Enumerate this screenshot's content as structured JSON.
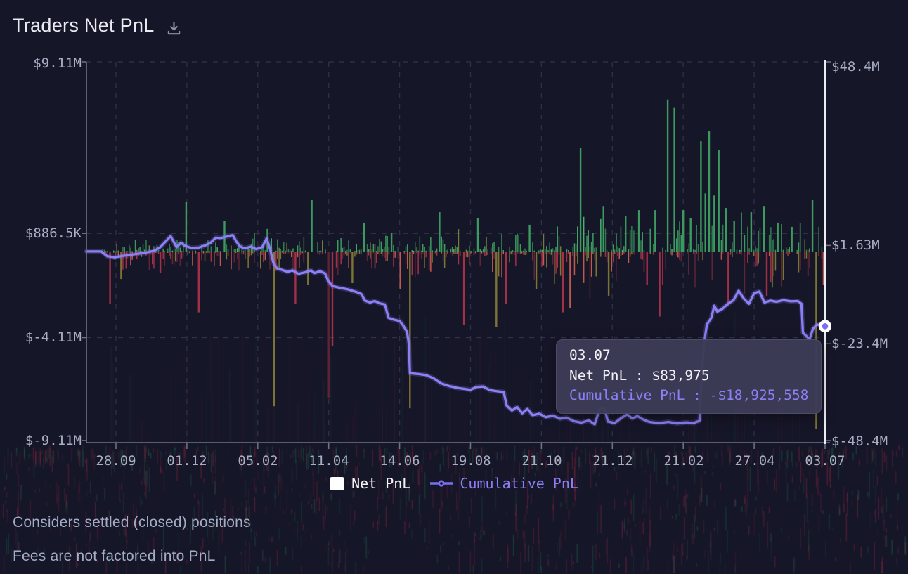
{
  "header": {
    "title": "Traders Net PnL"
  },
  "chart_data": {
    "type": "bar+line",
    "title": "Traders Net PnL",
    "x_tick_labels": [
      "28.09",
      "01.12",
      "05.02",
      "11.04",
      "14.06",
      "19.08",
      "21.10",
      "21.12",
      "21.02",
      "27.04",
      "03.07"
    ],
    "left_axis_labels": [
      "$9.11M",
      "$886.5K",
      "$-4.11M",
      "$-9.11M"
    ],
    "left_axis_values_musd": [
      9.11,
      0.8865,
      -4.11,
      -9.11
    ],
    "right_axis_labels": [
      "$48.4M",
      "$1.63M",
      "$-23.4M",
      "$-48.4M"
    ],
    "right_axis_values_musd": [
      48.4,
      1.63,
      -23.4,
      -48.4
    ],
    "legend": [
      {
        "label": "Net PnL",
        "series_type": "bar",
        "color": "#ffffff"
      },
      {
        "label": "Cumulative PnL",
        "series_type": "line",
        "color": "#8b80f5"
      }
    ],
    "tooltip": {
      "date": "03.07",
      "net_pnl": "Net PnL : $83,975",
      "cumulative_pnl": "Cumulative PnL : -$18,925,558"
    },
    "last_point": {
      "date": "03.07",
      "net_pnl_usd": 83975,
      "cumulative_pnl_usd": -18925558
    },
    "cumulative_line_musd": [
      [
        0.0,
        0.1
      ],
      [
        0.02,
        0.1
      ],
      [
        0.028,
        -1.1
      ],
      [
        0.038,
        -1.4
      ],
      [
        0.05,
        -1.0
      ],
      [
        0.065,
        -0.6
      ],
      [
        0.08,
        -0.2
      ],
      [
        0.092,
        0.3
      ],
      [
        0.1,
        1.2
      ],
      [
        0.108,
        2.8
      ],
      [
        0.114,
        4.0
      ],
      [
        0.118,
        2.6
      ],
      [
        0.122,
        1.2
      ],
      [
        0.128,
        2.3
      ],
      [
        0.134,
        1.5
      ],
      [
        0.142,
        1.0
      ],
      [
        0.152,
        1.1
      ],
      [
        0.16,
        1.6
      ],
      [
        0.168,
        2.3
      ],
      [
        0.175,
        3.6
      ],
      [
        0.182,
        3.5
      ],
      [
        0.19,
        3.9
      ],
      [
        0.198,
        4.3
      ],
      [
        0.203,
        2.6
      ],
      [
        0.208,
        1.4
      ],
      [
        0.214,
        0.9
      ],
      [
        0.222,
        1.3
      ],
      [
        0.23,
        0.7
      ],
      [
        0.238,
        1.2
      ],
      [
        0.244,
        3.4
      ],
      [
        0.249,
        0.5
      ],
      [
        0.253,
        -2.8
      ],
      [
        0.258,
        -4.2
      ],
      [
        0.265,
        -4.6
      ],
      [
        0.272,
        -5.1
      ],
      [
        0.279,
        -4.7
      ],
      [
        0.287,
        -5.6
      ],
      [
        0.296,
        -5.2
      ],
      [
        0.304,
        -4.7
      ],
      [
        0.309,
        -5.4
      ],
      [
        0.316,
        -4.9
      ],
      [
        0.323,
        -5.5
      ],
      [
        0.328,
        -7.6
      ],
      [
        0.333,
        -8.7
      ],
      [
        0.342,
        -9.1
      ],
      [
        0.353,
        -9.5
      ],
      [
        0.365,
        -10.2
      ],
      [
        0.372,
        -10.7
      ],
      [
        0.377,
        -12.4
      ],
      [
        0.384,
        -12.9
      ],
      [
        0.39,
        -12.5
      ],
      [
        0.397,
        -13.1
      ],
      [
        0.404,
        -13.4
      ],
      [
        0.409,
        -16.8
      ],
      [
        0.417,
        -17.3
      ],
      [
        0.424,
        -17.6
      ],
      [
        0.429,
        -18.8
      ],
      [
        0.434,
        -20.3
      ],
      [
        0.4365,
        -23.5
      ],
      [
        0.438,
        -30.9
      ],
      [
        0.449,
        -31.1
      ],
      [
        0.46,
        -31.4
      ],
      [
        0.47,
        -32.2
      ],
      [
        0.48,
        -33.5
      ],
      [
        0.49,
        -34.1
      ],
      [
        0.501,
        -34.6
      ],
      [
        0.512,
        -34.9
      ],
      [
        0.52,
        -35.1
      ],
      [
        0.528,
        -34.4
      ],
      [
        0.537,
        -34.3
      ],
      [
        0.546,
        -35.2
      ],
      [
        0.556,
        -35.5
      ],
      [
        0.565,
        -35.7
      ],
      [
        0.569,
        -39.2
      ],
      [
        0.576,
        -40.4
      ],
      [
        0.583,
        -39.5
      ],
      [
        0.59,
        -41.1
      ],
      [
        0.597,
        -40.0
      ],
      [
        0.604,
        -41.6
      ],
      [
        0.613,
        -41.2
      ],
      [
        0.622,
        -42.1
      ],
      [
        0.632,
        -41.7
      ],
      [
        0.641,
        -42.5
      ],
      [
        0.65,
        -42.2
      ],
      [
        0.66,
        -43.1
      ],
      [
        0.67,
        -43.5
      ],
      [
        0.68,
        -42.9
      ],
      [
        0.688,
        -43.9
      ],
      [
        0.695,
        -40.0
      ],
      [
        0.701,
        -39.7
      ],
      [
        0.706,
        -43.2
      ],
      [
        0.715,
        -43.6
      ],
      [
        0.724,
        -42.3
      ],
      [
        0.732,
        -41.4
      ],
      [
        0.739,
        -42.4
      ],
      [
        0.746,
        -41.8
      ],
      [
        0.753,
        -42.6
      ],
      [
        0.762,
        -43.3
      ],
      [
        0.775,
        -43.6
      ],
      [
        0.788,
        -43.3
      ],
      [
        0.8,
        -43.7
      ],
      [
        0.812,
        -43.4
      ],
      [
        0.822,
        -43.6
      ],
      [
        0.83,
        -43.0
      ],
      [
        0.8335,
        -30.5
      ],
      [
        0.836,
        -23.6
      ],
      [
        0.84,
        -18.5
      ],
      [
        0.846,
        -16.8
      ],
      [
        0.85,
        -13.7
      ],
      [
        0.854,
        -15.2
      ],
      [
        0.861,
        -14.5
      ],
      [
        0.868,
        -13.3
      ],
      [
        0.876,
        -12.3
      ],
      [
        0.883,
        -9.9
      ],
      [
        0.89,
        -11.9
      ],
      [
        0.897,
        -13.2
      ],
      [
        0.904,
        -10.5
      ],
      [
        0.911,
        -10.1
      ],
      [
        0.918,
        -12.9
      ],
      [
        0.926,
        -12.4
      ],
      [
        0.934,
        -12.7
      ],
      [
        0.944,
        -12.3
      ],
      [
        0.954,
        -12.6
      ],
      [
        0.963,
        -12.5
      ],
      [
        0.968,
        -13.2
      ],
      [
        0.97,
        -20.6
      ],
      [
        0.9745,
        -21.4
      ],
      [
        0.979,
        -22.3
      ],
      [
        0.9835,
        -19.6
      ],
      [
        0.989,
        -18.5
      ],
      [
        0.995,
        -18.8
      ],
      [
        1.0,
        -18.93
      ]
    ],
    "notable_bars_musd": [
      {
        "f": 0.135,
        "v": 2.4,
        "c": "green"
      },
      {
        "f": 0.187,
        "v": 1.5,
        "c": "green"
      },
      {
        "f": 0.245,
        "v": 1.1,
        "c": "green"
      },
      {
        "f": 0.305,
        "v": 2.5,
        "c": "green"
      },
      {
        "f": 0.376,
        "v": 1.4,
        "c": "green"
      },
      {
        "f": 0.413,
        "v": 0.9,
        "c": "green"
      },
      {
        "f": 0.478,
        "v": 1.9,
        "c": "green"
      },
      {
        "f": 0.53,
        "v": 1.6,
        "c": "green"
      },
      {
        "f": 0.6,
        "v": 1.3,
        "c": "green"
      },
      {
        "f": 0.669,
        "v": 5.0,
        "c": "green"
      },
      {
        "f": 0.7,
        "v": 2.2,
        "c": "green"
      },
      {
        "f": 0.73,
        "v": 1.7,
        "c": "green"
      },
      {
        "f": 0.748,
        "v": 2.0,
        "c": "green"
      },
      {
        "f": 0.77,
        "v": 2.0,
        "c": "green"
      },
      {
        "f": 0.787,
        "v": 7.3,
        "c": "green"
      },
      {
        "f": 0.796,
        "v": 6.9,
        "c": "green"
      },
      {
        "f": 0.808,
        "v": 2.0,
        "c": "green"
      },
      {
        "f": 0.818,
        "v": 1.6,
        "c": "green"
      },
      {
        "f": 0.832,
        "v": 5.3,
        "c": "green"
      },
      {
        "f": 0.838,
        "v": 2.8,
        "c": "green"
      },
      {
        "f": 0.843,
        "v": 5.8,
        "c": "green"
      },
      {
        "f": 0.85,
        "v": 2.7,
        "c": "green"
      },
      {
        "f": 0.856,
        "v": 4.9,
        "c": "green"
      },
      {
        "f": 0.866,
        "v": 2.1,
        "c": "green"
      },
      {
        "f": 0.877,
        "v": 1.5,
        "c": "green"
      },
      {
        "f": 0.9,
        "v": 1.9,
        "c": "green"
      },
      {
        "f": 0.917,
        "v": 2.2,
        "c": "green"
      },
      {
        "f": 0.936,
        "v": 1.4,
        "c": "green"
      },
      {
        "f": 0.955,
        "v": 1.2,
        "c": "green"
      },
      {
        "f": 0.983,
        "v": 2.5,
        "c": "green"
      },
      {
        "f": 0.032,
        "v": -2.5,
        "c": "red"
      },
      {
        "f": 0.047,
        "v": -1.3,
        "c": "olive"
      },
      {
        "f": 0.1,
        "v": -1.0,
        "c": "red"
      },
      {
        "f": 0.152,
        "v": -2.9,
        "c": "red"
      },
      {
        "f": 0.254,
        "v": -7.4,
        "c": "olive"
      },
      {
        "f": 0.283,
        "v": -2.5,
        "c": "red"
      },
      {
        "f": 0.3,
        "v": -1.6,
        "c": "olive"
      },
      {
        "f": 0.328,
        "v": -7.0,
        "c": "maroon"
      },
      {
        "f": 0.333,
        "v": -4.5,
        "c": "red"
      },
      {
        "f": 0.36,
        "v": -1.5,
        "c": "olive"
      },
      {
        "f": 0.425,
        "v": -1.8,
        "c": "salmon"
      },
      {
        "f": 0.438,
        "v": -7.5,
        "c": "olive"
      },
      {
        "f": 0.511,
        "v": -3.5,
        "c": "red"
      },
      {
        "f": 0.555,
        "v": -3.6,
        "c": "olive"
      },
      {
        "f": 0.568,
        "v": -2.5,
        "c": "red"
      },
      {
        "f": 0.609,
        "v": -1.8,
        "c": "olive"
      },
      {
        "f": 0.645,
        "v": -2.9,
        "c": "red"
      },
      {
        "f": 0.655,
        "v": -2.7,
        "c": "salmon"
      },
      {
        "f": 0.707,
        "v": -2.1,
        "c": "olive"
      },
      {
        "f": 0.759,
        "v": -1.6,
        "c": "red"
      },
      {
        "f": 0.776,
        "v": -3.1,
        "c": "red"
      },
      {
        "f": 0.869,
        "v": -2.6,
        "c": "red"
      },
      {
        "f": 0.921,
        "v": -2.1,
        "c": "red"
      },
      {
        "f": 0.988,
        "v": -8.5,
        "c": "olive"
      },
      {
        "f": 0.998,
        "v": -1.6,
        "c": "salmon"
      }
    ],
    "small_bar_noise": {
      "typical_abs_musd": 0.3,
      "max_abs_musd": 1.6,
      "note": "dense daily bars hugging the zero line"
    },
    "colors": {
      "background": "#161629",
      "bar_green": "#3c9a5f",
      "bar_green_dark": "#2f7d4d",
      "bar_green_bright": "#49b272",
      "bar_red": "#a23046",
      "bar_salmon": "#c05a50",
      "bar_olive": "#7c7433",
      "bar_maroon": "#5d2436",
      "line": "#8b80f5",
      "crosshair": "#ecedf2",
      "axis": "#70758a",
      "grid": "#32324b",
      "axis_text": "#a9aec2",
      "tooltip_accent": "#8a80f4"
    }
  },
  "footer": {
    "note1": "Considers settled (closed) positions",
    "note2": "Fees are not factored into PnL"
  }
}
